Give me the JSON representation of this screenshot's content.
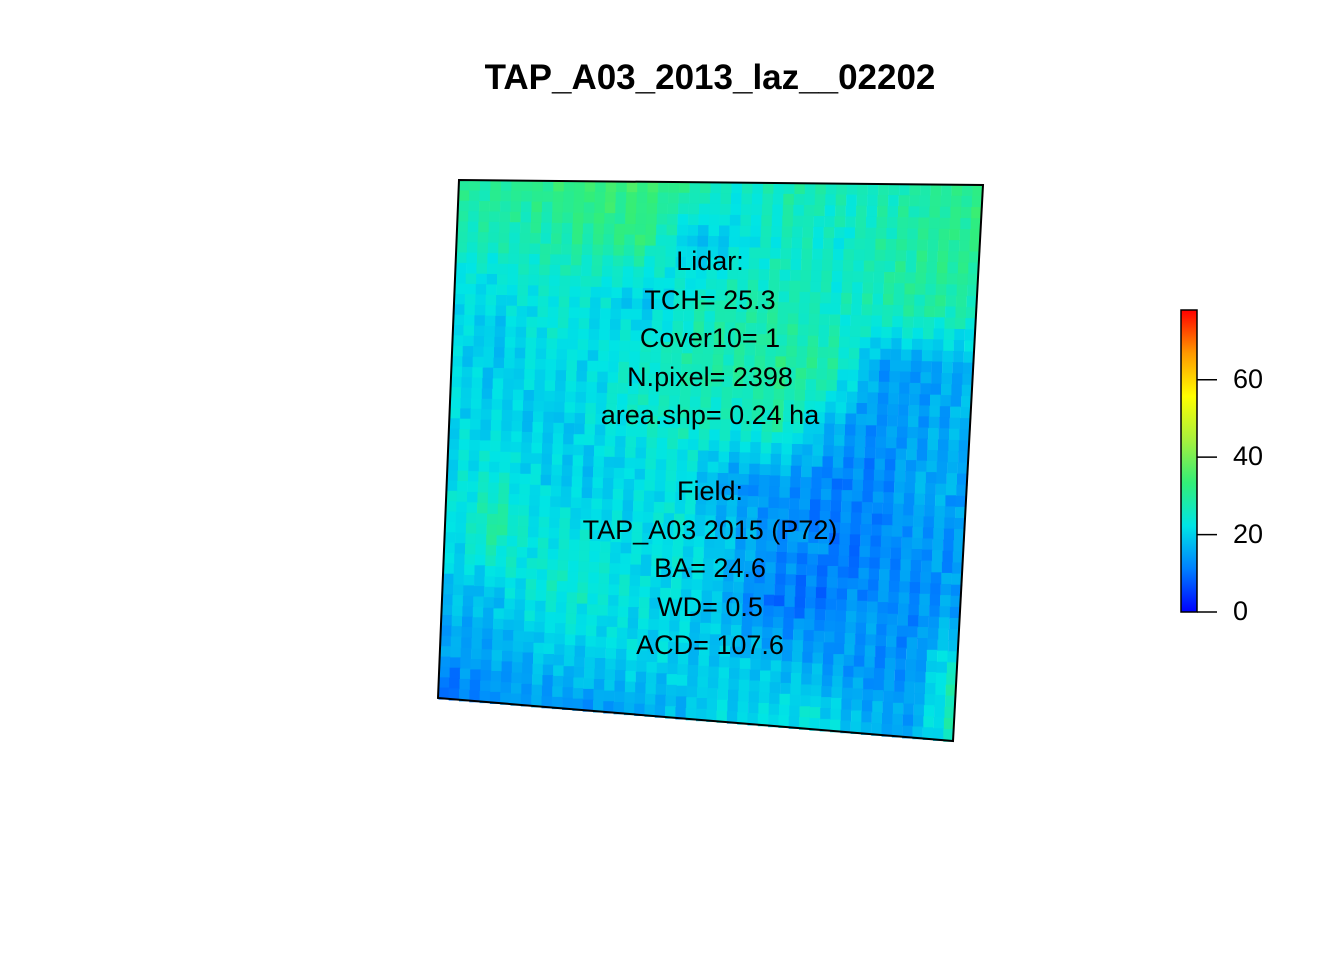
{
  "title": "TAP_A03_2013_laz__02202",
  "lidar": {
    "heading": "Lidar:",
    "tch": "TCH= 25.3",
    "cover10": "Cover10= 1",
    "npixel": "N.pixel= 2398",
    "area": "area.shp= 0.24 ha"
  },
  "field": {
    "heading": "Field:",
    "plot": "TAP_A03 2015 (P72)",
    "ba": "BA= 24.6",
    "wd": "WD= 0.5",
    "acd": "ACD= 107.6"
  },
  "legend": {
    "min": 0,
    "max": 78,
    "ticks": [
      "0",
      "20",
      "40",
      "60"
    ],
    "colors": [
      "#0000ff",
      "#0080ff",
      "#00e5e5",
      "#33ee77",
      "#a8f03c",
      "#ffff00",
      "#ff9900",
      "#ff0000"
    ]
  },
  "raster_values": {
    "description_rows": 10,
    "grid": [
      [
        30,
        31,
        32,
        34,
        33,
        30,
        24,
        28,
        27,
        26,
        30,
        32
      ],
      [
        26,
        27,
        28,
        30,
        31,
        18,
        22,
        26,
        24,
        28,
        30,
        31
      ],
      [
        22,
        21,
        24,
        23,
        18,
        26,
        28,
        27,
        25,
        27,
        29,
        28
      ],
      [
        20,
        19,
        22,
        21,
        25,
        27,
        28,
        30,
        29,
        15,
        14,
        16
      ],
      [
        21,
        20,
        19,
        22,
        24,
        26,
        25,
        28,
        17,
        13,
        15,
        17
      ],
      [
        22,
        23,
        20,
        19,
        21,
        22,
        14,
        13,
        12,
        11,
        16,
        15
      ],
      [
        20,
        30,
        22,
        23,
        21,
        23,
        18,
        13,
        12,
        11,
        14,
        13
      ],
      [
        18,
        19,
        24,
        25,
        22,
        21,
        17,
        11,
        10,
        14,
        12,
        16
      ],
      [
        15,
        16,
        18,
        20,
        21,
        20,
        19,
        18,
        16,
        14,
        13,
        28
      ],
      [
        8,
        12,
        14,
        13,
        15,
        17,
        21,
        22,
        24,
        18,
        15,
        27
      ]
    ]
  }
}
